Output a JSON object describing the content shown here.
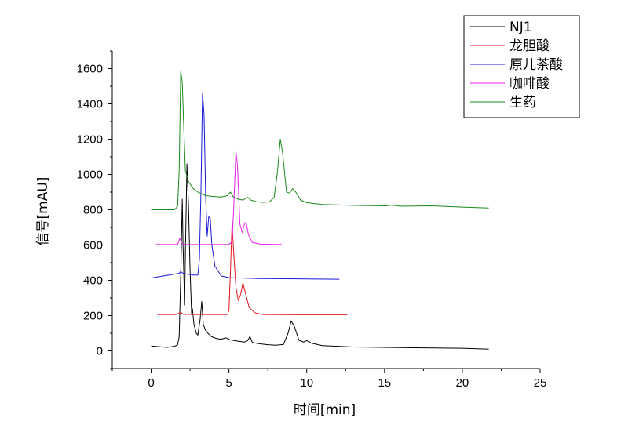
{
  "chart_data": {
    "type": "line",
    "xlabel": "时间[min]",
    "ylabel": "信号[mAU]",
    "xlim": [
      -2.5,
      25
    ],
    "ylim": [
      -100,
      1700
    ],
    "x_ticks": [
      0,
      5,
      10,
      15,
      20,
      25
    ],
    "y_ticks": [
      0,
      200,
      400,
      600,
      800,
      1000,
      1200,
      1400,
      1600
    ],
    "grid": false,
    "legend_position": "top-right",
    "series": [
      {
        "name": "NJ1",
        "color": "#000000",
        "points": [
          [
            0,
            28
          ],
          [
            0.5,
            24
          ],
          [
            1.0,
            20
          ],
          [
            1.5,
            26
          ],
          [
            1.7,
            35
          ],
          [
            1.8,
            80
          ],
          [
            1.9,
            420
          ],
          [
            2.0,
            860
          ],
          [
            2.05,
            600
          ],
          [
            2.15,
            260
          ],
          [
            2.2,
            560
          ],
          [
            2.3,
            1060
          ],
          [
            2.4,
            820
          ],
          [
            2.5,
            460
          ],
          [
            2.6,
            210
          ],
          [
            2.65,
            240
          ],
          [
            2.75,
            150
          ],
          [
            2.9,
            100
          ],
          [
            3.0,
            90
          ],
          [
            3.15,
            180
          ],
          [
            3.25,
            280
          ],
          [
            3.35,
            150
          ],
          [
            3.5,
            115
          ],
          [
            3.7,
            95
          ],
          [
            3.9,
            80
          ],
          [
            4.2,
            70
          ],
          [
            4.5,
            66
          ],
          [
            4.8,
            74
          ],
          [
            5.1,
            62
          ],
          [
            5.5,
            56
          ],
          [
            6.0,
            50
          ],
          [
            6.2,
            58
          ],
          [
            6.35,
            82
          ],
          [
            6.5,
            48
          ],
          [
            7.0,
            40
          ],
          [
            7.5,
            35
          ],
          [
            8.0,
            32
          ],
          [
            8.5,
            36
          ],
          [
            8.8,
            100
          ],
          [
            9.0,
            170
          ],
          [
            9.2,
            140
          ],
          [
            9.5,
            60
          ],
          [
            9.8,
            50
          ],
          [
            10.0,
            58
          ],
          [
            10.3,
            44
          ],
          [
            11.0,
            30
          ],
          [
            13.0,
            22
          ],
          [
            15.0,
            20
          ],
          [
            17.0,
            18
          ],
          [
            20.0,
            15
          ],
          [
            21.7,
            10
          ]
        ]
      },
      {
        "name": "龙胆酸",
        "color": "#e8141e",
        "points": [
          [
            0.4,
            206
          ],
          [
            1.6,
            206
          ],
          [
            1.9,
            218
          ],
          [
            2.1,
            206
          ],
          [
            2.3,
            208
          ],
          [
            2.6,
            206
          ],
          [
            3.0,
            206
          ],
          [
            4.9,
            206
          ],
          [
            5.0,
            230
          ],
          [
            5.1,
            460
          ],
          [
            5.2,
            730
          ],
          [
            5.3,
            560
          ],
          [
            5.45,
            360
          ],
          [
            5.6,
            285
          ],
          [
            5.75,
            320
          ],
          [
            5.9,
            385
          ],
          [
            6.05,
            330
          ],
          [
            6.3,
            245
          ],
          [
            6.7,
            215
          ],
          [
            7.2,
            206
          ],
          [
            10.0,
            205
          ],
          [
            12.6,
            205
          ]
        ]
      },
      {
        "name": "原儿茶酸",
        "color": "#1a1ad6",
        "points": [
          [
            0,
            413
          ],
          [
            0.8,
            425
          ],
          [
            1.5,
            435
          ],
          [
            1.8,
            440
          ],
          [
            1.9,
            450
          ],
          [
            2.0,
            442
          ],
          [
            2.3,
            435
          ],
          [
            2.7,
            430
          ],
          [
            3.0,
            430
          ],
          [
            3.1,
            520
          ],
          [
            3.2,
            900
          ],
          [
            3.3,
            1460
          ],
          [
            3.4,
            1340
          ],
          [
            3.5,
            880
          ],
          [
            3.6,
            650
          ],
          [
            3.7,
            760
          ],
          [
            3.8,
            750
          ],
          [
            3.9,
            600
          ],
          [
            4.1,
            480
          ],
          [
            4.5,
            425
          ],
          [
            5.0,
            415
          ],
          [
            7.0,
            410
          ],
          [
            10.0,
            408
          ],
          [
            12.1,
            406
          ]
        ]
      },
      {
        "name": "咖啡酸",
        "color": "#e81ee8",
        "points": [
          [
            0.3,
            603
          ],
          [
            1.7,
            603
          ],
          [
            1.85,
            640
          ],
          [
            1.95,
            612
          ],
          [
            2.1,
            603
          ],
          [
            5.0,
            603
          ],
          [
            5.2,
            620
          ],
          [
            5.3,
            800
          ],
          [
            5.45,
            1130
          ],
          [
            5.55,
            1050
          ],
          [
            5.7,
            720
          ],
          [
            5.85,
            670
          ],
          [
            6.0,
            720
          ],
          [
            6.1,
            730
          ],
          [
            6.25,
            660
          ],
          [
            6.5,
            615
          ],
          [
            7.0,
            605
          ],
          [
            8.4,
            603
          ]
        ]
      },
      {
        "name": "生药",
        "color": "#1a8a1a",
        "points": [
          [
            0,
            800
          ],
          [
            1.5,
            800
          ],
          [
            1.7,
            820
          ],
          [
            1.8,
            1020
          ],
          [
            1.9,
            1590
          ],
          [
            2.0,
            1520
          ],
          [
            2.1,
            1260
          ],
          [
            2.2,
            1020
          ],
          [
            2.4,
            960
          ],
          [
            2.7,
            920
          ],
          [
            3.0,
            900
          ],
          [
            3.5,
            880
          ],
          [
            4.0,
            875
          ],
          [
            4.5,
            872
          ],
          [
            4.9,
            880
          ],
          [
            5.1,
            900
          ],
          [
            5.3,
            870
          ],
          [
            5.6,
            860
          ],
          [
            5.9,
            855
          ],
          [
            6.2,
            870
          ],
          [
            6.4,
            855
          ],
          [
            6.8,
            845
          ],
          [
            7.2,
            842
          ],
          [
            7.6,
            845
          ],
          [
            7.9,
            870
          ],
          [
            8.1,
            1000
          ],
          [
            8.3,
            1200
          ],
          [
            8.45,
            1120
          ],
          [
            8.7,
            900
          ],
          [
            8.9,
            895
          ],
          [
            9.1,
            920
          ],
          [
            9.3,
            900
          ],
          [
            9.6,
            855
          ],
          [
            10.0,
            840
          ],
          [
            11.0,
            830
          ],
          [
            13.0,
            825
          ],
          [
            15.0,
            822
          ],
          [
            15.5,
            826
          ],
          [
            16.0,
            820
          ],
          [
            18.0,
            822
          ],
          [
            20.0,
            815
          ],
          [
            21.7,
            810
          ]
        ]
      }
    ]
  }
}
